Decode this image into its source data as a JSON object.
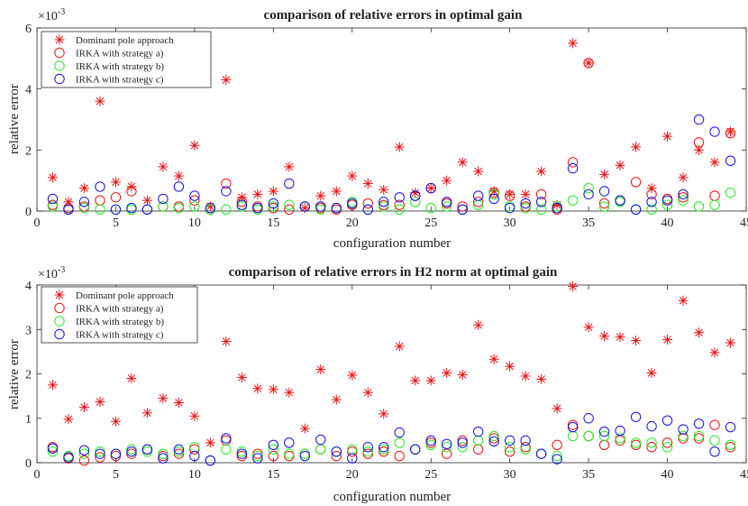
{
  "chart_data": [
    {
      "type": "scatter",
      "title": "comparison of relative errors in optimal gain",
      "xlabel": "configuration number",
      "ylabel": "relative error",
      "exponent_label": "×10",
      "exponent_power": "-3",
      "xlim": [
        0,
        45
      ],
      "ylim": [
        0,
        6
      ],
      "xticks": [
        "0",
        "5",
        "10",
        "15",
        "20",
        "25",
        "30",
        "35",
        "40",
        "45"
      ],
      "yticks": [
        "0",
        "2",
        "4",
        "6"
      ],
      "legend_position": "top-left",
      "x": [
        1,
        2,
        3,
        4,
        5,
        6,
        7,
        8,
        9,
        10,
        11,
        12,
        13,
        14,
        15,
        16,
        17,
        18,
        19,
        20,
        21,
        22,
        23,
        24,
        25,
        26,
        27,
        28,
        29,
        30,
        31,
        32,
        33,
        34,
        35,
        36,
        37,
        38,
        39,
        40,
        41,
        42,
        43,
        44
      ],
      "series": [
        {
          "name": "Dominant pole approach",
          "marker": "star",
          "color": "#ee1111",
          "values": [
            1.1,
            0.3,
            0.75,
            3.6,
            0.95,
            0.8,
            0.35,
            1.45,
            1.15,
            2.15,
            0.15,
            4.3,
            0.45,
            0.55,
            0.65,
            1.45,
            0.1,
            0.5,
            0.65,
            1.15,
            0.9,
            0.7,
            2.1,
            0.6,
            0.75,
            1.0,
            1.6,
            1.3,
            0.65,
            0.55,
            0.55,
            1.3,
            0.2,
            5.5,
            4.85,
            1.2,
            1.5,
            2.1,
            0.75,
            2.45,
            1.1,
            2.0,
            1.6,
            2.6
          ]
        },
        {
          "name": "IRKA with strategy a)",
          "marker": "circle",
          "color": "#ee1111",
          "values": [
            0.2,
            0.1,
            0.15,
            0.35,
            0.45,
            0.65,
            0.05,
            0.15,
            0.15,
            0.35,
            0.05,
            0.9,
            0.3,
            0.15,
            0.1,
            0.05,
            0.15,
            0.1,
            0.05,
            0.2,
            0.25,
            0.2,
            0.2,
            0.5,
            0.75,
            0.25,
            0.15,
            0.3,
            0.6,
            0.5,
            0.15,
            0.55,
            0.05,
            1.6,
            4.85,
            0.25,
            0.35,
            0.95,
            0.55,
            0.4,
            0.45,
            2.25,
            0.5,
            2.55
          ]
        },
        {
          "name": "IRKA with strategy b)",
          "marker": "circle",
          "color": "#22ee22",
          "values": [
            0.15,
            0.05,
            0.1,
            0.05,
            0.05,
            0.05,
            0.05,
            0.15,
            0.1,
            0.15,
            0.05,
            0.05,
            0.15,
            0.05,
            0.15,
            0.2,
            0.15,
            0.05,
            0.1,
            0.3,
            0.05,
            0.15,
            0.05,
            0.3,
            0.1,
            0.15,
            0.05,
            0.2,
            0.55,
            0.15,
            0.1,
            0.05,
            0.15,
            0.35,
            0.75,
            0.15,
            0.3,
            0.05,
            0.05,
            0.2,
            0.35,
            0.15,
            0.2,
            0.6
          ]
        },
        {
          "name": "IRKA with strategy c)",
          "marker": "circle",
          "color": "#1111ee",
          "values": [
            0.4,
            0.05,
            0.3,
            0.8,
            0.05,
            0.1,
            0.05,
            0.4,
            0.8,
            0.5,
            0.1,
            0.65,
            0.2,
            0.1,
            0.25,
            0.9,
            0.15,
            0.15,
            0.1,
            0.25,
            0.05,
            0.3,
            0.45,
            0.5,
            0.75,
            0.3,
            0.05,
            0.5,
            0.4,
            0.1,
            0.25,
            0.3,
            0.1,
            1.4,
            0.55,
            0.65,
            0.35,
            0.05,
            0.3,
            0.35,
            0.55,
            3.0,
            2.6,
            1.65
          ]
        }
      ]
    },
    {
      "type": "scatter",
      "title": "comparison of relative errors in H2 norm at optimal gain",
      "xlabel": "configuration number",
      "ylabel": "relative error",
      "exponent_label": "×10",
      "exponent_power": "-3",
      "xlim": [
        0,
        45
      ],
      "ylim": [
        0,
        4
      ],
      "xticks": [
        "0",
        "5",
        "10",
        "15",
        "20",
        "25",
        "30",
        "35",
        "40",
        "45"
      ],
      "yticks": [
        "0",
        "1",
        "2",
        "3",
        "4"
      ],
      "legend_position": "top-left",
      "x": [
        1,
        2,
        3,
        4,
        5,
        6,
        7,
        8,
        9,
        10,
        11,
        12,
        13,
        14,
        15,
        16,
        17,
        18,
        19,
        20,
        21,
        22,
        23,
        24,
        25,
        26,
        27,
        28,
        29,
        30,
        31,
        32,
        33,
        34,
        35,
        36,
        37,
        38,
        39,
        40,
        41,
        42,
        43,
        44
      ],
      "series": [
        {
          "name": "Dominant pole approach",
          "marker": "star",
          "color": "#ee1111",
          "values": [
            1.75,
            0.98,
            1.25,
            1.37,
            0.93,
            1.9,
            1.12,
            1.45,
            1.35,
            1.05,
            0.45,
            2.73,
            1.92,
            1.67,
            1.65,
            1.58,
            0.77,
            2.1,
            1.42,
            1.97,
            1.58,
            1.1,
            2.62,
            1.85,
            1.85,
            2.02,
            1.98,
            3.1,
            2.33,
            2.17,
            1.95,
            1.88,
            1.22,
            3.97,
            3.05,
            2.85,
            2.83,
            2.75,
            2.02,
            2.77,
            3.65,
            2.93,
            2.48,
            2.7
          ]
        },
        {
          "name": "IRKA with strategy a)",
          "marker": "circle",
          "color": "#ee1111",
          "values": [
            0.35,
            0.1,
            0.05,
            0.12,
            0.15,
            0.2,
            0.3,
            0.15,
            0.2,
            0.3,
            0.05,
            0.5,
            0.15,
            0.2,
            0.15,
            0.15,
            0.2,
            0.3,
            0.15,
            0.25,
            0.2,
            0.25,
            0.15,
            0.3,
            0.45,
            0.2,
            0.5,
            0.3,
            0.55,
            0.25,
            0.35,
            0.2,
            0.4,
            0.85,
            0.6,
            0.4,
            0.5,
            0.4,
            0.35,
            0.45,
            0.55,
            0.55,
            0.85,
            0.35
          ]
        },
        {
          "name": "IRKA with strategy b)",
          "marker": "circle",
          "color": "#22ee22",
          "values": [
            0.25,
            0.15,
            0.2,
            0.25,
            0.2,
            0.3,
            0.25,
            0.2,
            0.25,
            0.35,
            0.05,
            0.3,
            0.25,
            0.15,
            0.3,
            0.2,
            0.2,
            0.3,
            0.25,
            0.3,
            0.25,
            0.3,
            0.45,
            0.3,
            0.4,
            0.35,
            0.35,
            0.5,
            0.6,
            0.35,
            0.3,
            0.2,
            0.15,
            0.6,
            0.6,
            0.6,
            0.55,
            0.45,
            0.45,
            0.35,
            0.6,
            0.6,
            0.5,
            0.4
          ]
        },
        {
          "name": "IRKA with strategy c)",
          "marker": "circle",
          "color": "#1111ee",
          "values": [
            0.32,
            0.12,
            0.28,
            0.2,
            0.2,
            0.25,
            0.3,
            0.1,
            0.3,
            0.15,
            0.05,
            0.55,
            0.2,
            0.1,
            0.4,
            0.45,
            0.15,
            0.52,
            0.25,
            0.1,
            0.35,
            0.35,
            0.68,
            0.3,
            0.5,
            0.42,
            0.45,
            0.7,
            0.48,
            0.5,
            0.5,
            0.2,
            0.08,
            0.8,
            1.0,
            0.7,
            0.72,
            1.03,
            0.82,
            0.95,
            0.75,
            0.88,
            0.25,
            0.8
          ]
        }
      ]
    }
  ]
}
